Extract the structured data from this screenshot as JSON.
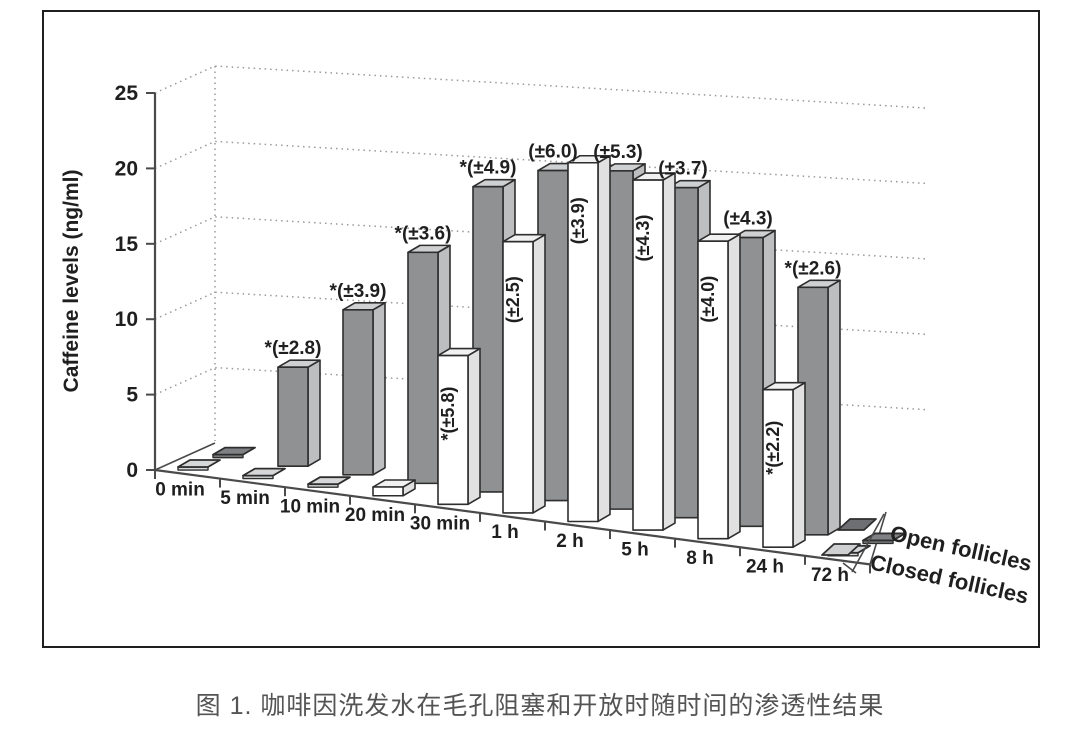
{
  "figure": {
    "caption": "图 1. 咖啡因洗发水在毛孔阻塞和开放时随时间的渗透性结果"
  },
  "chart_data": {
    "type": "bar",
    "style_3d": true,
    "title": "",
    "ylabel": "Caffeine levels (ng/ml)",
    "xlabel": "",
    "ylim": [
      0,
      25
    ],
    "yticks": [
      "0",
      "5",
      "10",
      "15",
      "20",
      "25"
    ],
    "ytick_values": [
      0,
      5,
      10,
      15,
      20,
      25
    ],
    "grid": true,
    "legend_position": "bottom-right",
    "categories": [
      "0 min",
      "5 min",
      "10 min",
      "20 min",
      "30 min",
      "1 h",
      "2 h",
      "5 h",
      "8 h",
      "24 h",
      "72 h"
    ],
    "series": [
      {
        "name": "Open follicles",
        "values": [
          0,
          6,
          10,
          14,
          18.5,
          20,
          20.5,
          20,
          17.5,
          15,
          0
        ],
        "annotations": [
          "",
          "*(±2.8)",
          "*(±3.9)",
          "*(±3.6)",
          "*(±4.9)",
          "(±6.0)",
          "(±5.3)",
          "(±3.7)",
          "(±4.3)",
          "*(±2.6)",
          ""
        ],
        "colors": {
          "front": "#8f9193",
          "side": "#bdbec0",
          "top": "#cfd0d2",
          "zero_tile": "#7f8184",
          "legend_tile": "#6d6f72"
        }
      },
      {
        "name": "Closed follicles",
        "values": [
          0,
          0,
          0,
          0.5,
          8.5,
          15.5,
          20.5,
          20,
          17,
          9,
          0
        ],
        "annotations": [
          "",
          "",
          "",
          "",
          "*(±5.8)",
          "(±2.5)",
          "(±3.9)",
          "(±4.3)",
          "(±4.0)",
          "*(±2.2)",
          ""
        ],
        "colors": {
          "front": "#ffffff",
          "side": "#e1e1e1",
          "top": "#f1f1f1",
          "zero_tile": "#d6d7d8",
          "legend_tile": "#ced0d2"
        }
      }
    ],
    "style": {
      "outline": "#2e2e2e",
      "axis": "#4a4a4a",
      "grid_dots": "#999999",
      "text": "#1f1f1f"
    }
  }
}
